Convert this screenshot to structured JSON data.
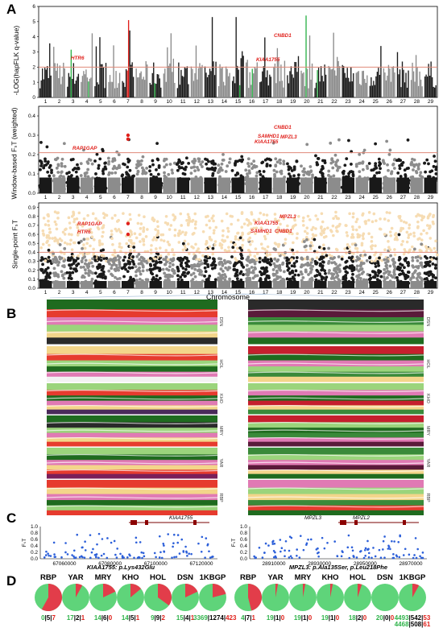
{
  "panels": {
    "A": "A",
    "B": "B",
    "C": "C",
    "D": "D"
  },
  "panelA": {
    "ylab1": "-LOG(hapFLK q-value)",
    "ylab2": "Window-based FₛT (weighted)",
    "ylab3": "Single-point FₛT",
    "xlabel": "Chromosome",
    "chromosomes": [
      "1",
      "2",
      "3",
      "4",
      "5",
      "6",
      "7",
      "8",
      "9",
      "10",
      "11",
      "12",
      "13",
      "14",
      "15",
      "16",
      "17",
      "18",
      "19",
      "20",
      "21",
      "22",
      "23",
      "24",
      "25",
      "26",
      "27",
      "28",
      "29"
    ],
    "yticks1": [
      "0",
      "1",
      "2",
      "3",
      "4",
      "5",
      "6"
    ],
    "yticks2": [
      "0.0",
      "0.1",
      "0.2",
      "0.3",
      "0.4"
    ],
    "yticks3": [
      "0.0",
      "0.1",
      "0.2",
      "0.3",
      "0.4",
      "0.5",
      "0.6",
      "0.7",
      "0.8",
      "0.9"
    ],
    "genes1": [
      "HTR6",
      "KIAA1755",
      "CNBD1"
    ],
    "genes2": [
      "RAP1GAP",
      "SAMHD1",
      "KIAA1755",
      "CNBD1",
      "MPZL3"
    ],
    "genes3": [
      "RAP1GAP",
      "HTR6",
      "KIAA1755",
      "SAMHD1",
      "MPZL3",
      "CNBD1"
    ]
  },
  "panelB": {
    "breeds": [
      "DSN",
      "HOL",
      "KHO",
      "MRY",
      "YAR",
      "RBP"
    ]
  },
  "panelC": {
    "left_gene": "KIAA1755",
    "right_genes": [
      "MPZL3",
      "MPZL2"
    ],
    "ylab": "FₛT",
    "yticks": [
      "0.0",
      "0.2",
      "0.4",
      "0.6",
      "0.8",
      "1.0"
    ],
    "left_xticks": [
      "67060000",
      "67080000",
      "67100000",
      "67120000"
    ],
    "right_xticks": [
      "28910000",
      "28930000",
      "28950000",
      "28970000"
    ]
  },
  "panelD": {
    "left_title": "KIAA1755: p.Lys432Glu",
    "right_title": "MPZL3: p.Ala135Ser, p.Leu218Phe",
    "left_pies": [
      {
        "name": "RBP",
        "fraction": 0.58,
        "g": "0",
        "k": "5",
        "r": "7"
      },
      {
        "name": "YAR",
        "fraction": 0.08,
        "g": "17",
        "k": "2",
        "r": "1"
      },
      {
        "name": "MRY",
        "fraction": 0.18,
        "g": "14",
        "k": "6",
        "r": "0"
      },
      {
        "name": "KHO",
        "fraction": 0.14,
        "g": "14",
        "k": "5",
        "r": "1"
      },
      {
        "name": "HOL",
        "fraction": 0.35,
        "g": "9",
        "k": "9",
        "r": "2"
      },
      {
        "name": "DSN",
        "fraction": 0.18,
        "g": "15",
        "k": "4",
        "r": "1"
      },
      {
        "name": "1KBGP",
        "fraction": 0.21,
        "g": "3369",
        "k": "1274",
        "r": "423"
      }
    ],
    "right_pies": [
      {
        "name": "RBP",
        "fraction": 0.46,
        "g": "4",
        "k": "7",
        "r": "1"
      },
      {
        "name": "YAR",
        "fraction": 0.03,
        "g": "19",
        "k": "1",
        "r": "0"
      },
      {
        "name": "MRY",
        "fraction": 0.03,
        "g": "19",
        "k": "1",
        "r": "0"
      },
      {
        "name": "KHO",
        "fraction": 0.03,
        "g": "19",
        "k": "1",
        "r": "0"
      },
      {
        "name": "HOL",
        "fraction": 0.05,
        "g": "18",
        "k": "2",
        "r": "0"
      },
      {
        "name": "DSN",
        "fraction": 0.0,
        "g": "20",
        "k": "0",
        "r": "0"
      },
      {
        "name": "1KBGP",
        "fraction": 0.08,
        "g": "4493",
        "k": "542",
        "r": "53"
      }
    ],
    "kbgp_second": {
      "g": "4468",
      "k": "508",
      "r": "61"
    }
  },
  "colors": {
    "green": "#2fb34a",
    "red": "#e0201b",
    "pie_green": "#5fd47a",
    "pie_red": "#e23d4a",
    "dark": "#1a1a1a",
    "grey": "#8c8c8c",
    "beige": "#f6dcb3",
    "blue": "#2c5fd9"
  }
}
